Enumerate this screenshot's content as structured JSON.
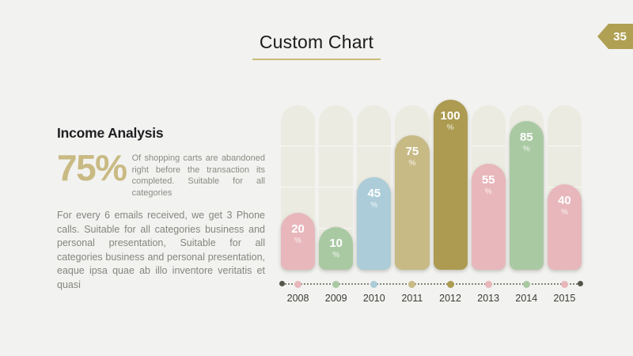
{
  "page": {
    "number": "35",
    "background_color": "#f2f2f0",
    "accent_color": "#b0a054"
  },
  "header": {
    "title": "Custom Chart",
    "underline_color": "#c9bc7a"
  },
  "content": {
    "heading": "Income Analysis",
    "stat_value": "75%",
    "stat_caption": "Of shopping carts are abandoned right before the transaction its completed. Suitable for all categories",
    "paragraph": "For every 6 emails received, we get 3 Phone calls. Suitable for all categories business and personal presentation, Suitable for all categories business and personal presentation, eaque ipsa quae ab illo inventore veritatis et quasi"
  },
  "chart_data": {
    "type": "bar",
    "title": "",
    "xlabel": "",
    "ylabel": "",
    "categories": [
      "2008",
      "2009",
      "2010",
      "2011",
      "2012",
      "2013",
      "2014",
      "2015"
    ],
    "values": [
      20,
      10,
      45,
      75,
      100,
      55,
      85,
      40
    ],
    "unit": "%",
    "ylim": [
      0,
      100
    ],
    "grid": false,
    "legend": "none",
    "value_labels": "inside-top",
    "bar_colors": [
      "#e8b7bb",
      "#a9c9a3",
      "#abccd8",
      "#c7ba85",
      "#ac9b51",
      "#e8b7bb",
      "#a9c9a3",
      "#e8b7bb"
    ],
    "track_color": "#ebebe2",
    "axis_line_color": "#85857b",
    "axis_end_dot_color": "#55554c",
    "year_label_color": "#3b3b36"
  }
}
